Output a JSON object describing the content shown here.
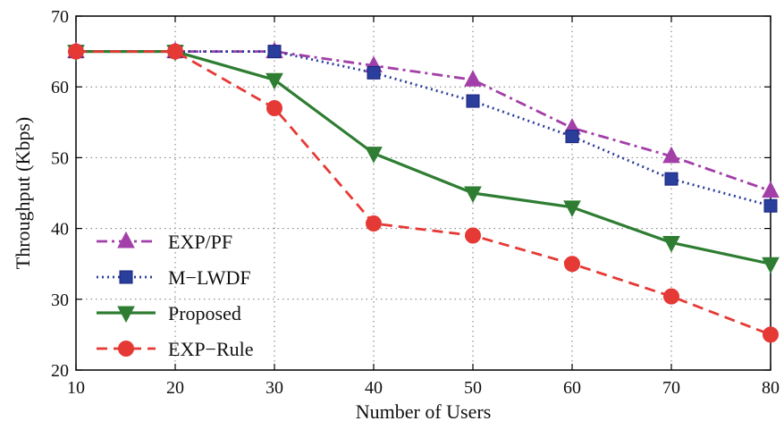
{
  "chart_data": {
    "type": "line",
    "xlabel": "Number of Users",
    "ylabel": "Throughput (Kbps)",
    "xlim": [
      10,
      80
    ],
    "ylim": [
      20,
      70
    ],
    "xticks": [
      10,
      20,
      30,
      40,
      50,
      60,
      70,
      80
    ],
    "yticks": [
      20,
      30,
      40,
      50,
      60,
      70
    ],
    "grid": true,
    "legend_position": "bottom-left",
    "x": [
      10,
      20,
      30,
      40,
      50,
      60,
      70,
      80
    ],
    "series": [
      {
        "name": "EXP/PF",
        "values": [
          65,
          65,
          65,
          63,
          61,
          54.2,
          50.2,
          45.3
        ],
        "color": "#a23fa8",
        "marker": "triangle-up",
        "line_style": "dash-dot"
      },
      {
        "name": "M−LWDF",
        "values": [
          65,
          65,
          65,
          62,
          58,
          53,
          47,
          43.2
        ],
        "color": "#2a3e9c",
        "marker": "square",
        "line_style": "dotted"
      },
      {
        "name": "Proposed",
        "values": [
          65,
          65,
          61,
          50.6,
          45,
          43,
          38,
          35
        ],
        "color": "#2e7d32",
        "marker": "triangle-down",
        "line_style": "solid"
      },
      {
        "name": "EXP−Rule",
        "values": [
          65,
          65,
          57,
          40.7,
          39,
          35,
          30.4,
          25
        ],
        "color": "#e53935",
        "marker": "circle",
        "line_style": "dashed"
      }
    ]
  }
}
